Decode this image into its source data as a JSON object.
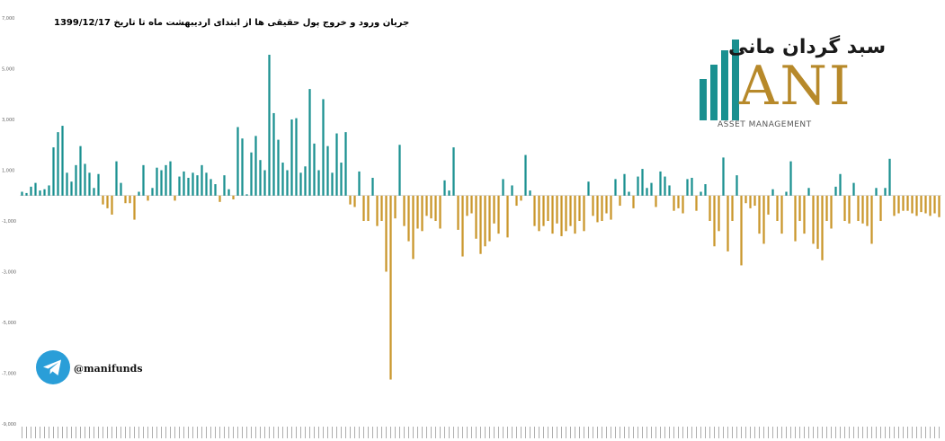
{
  "chart_data": {
    "type": "bar",
    "title": "جریان ورود و خروج پول حقیقی ها از ابتدای اردیبهشت ماه تا تاریخ 1399/12/17",
    "ylim": [
      -9000,
      7000
    ],
    "yticks": [
      "7,000",
      "5,000",
      "3,000",
      "1,000",
      "-1,000",
      "-3,000",
      "-5,000",
      "-7,000",
      "-9,000"
    ],
    "ytick_values": [
      7000,
      5000,
      3000,
      1000,
      -1000,
      -3000,
      -5000,
      -7000,
      -9000
    ],
    "positive_color": "#1a9090",
    "negative_color": "#c9962a",
    "values": [
      150,
      100,
      350,
      500,
      200,
      250,
      400,
      1900,
      2500,
      2750,
      900,
      550,
      1200,
      1950,
      1250,
      900,
      300,
      850,
      -350,
      -500,
      -750,
      1350,
      500,
      -300,
      -300,
      -950,
      150,
      1200,
      -200,
      300,
      1100,
      1000,
      1200,
      1350,
      -200,
      750,
      950,
      700,
      900,
      800,
      1200,
      900,
      650,
      450,
      -250,
      800,
      250,
      -150,
      2700,
      2250,
      50,
      1700,
      2350,
      1400,
      1000,
      5550,
      3250,
      2200,
      1300,
      1000,
      3000,
      3050,
      900,
      1150,
      4200,
      2050,
      1000,
      3800,
      1950,
      900,
      2450,
      1300,
      2500,
      -350,
      -450,
      950,
      -1000,
      -1000,
      700,
      -1200,
      -1000,
      -3000,
      -7250,
      -900,
      2000,
      -1200,
      -1800,
      -2500,
      -1300,
      -1400,
      -800,
      -900,
      -1000,
      -1300,
      600,
      200,
      1900,
      -1350,
      -2400,
      -800,
      -700,
      -1700,
      -2300,
      -2000,
      -1800,
      -1100,
      -1500,
      650,
      -1650,
      400,
      -400,
      -200,
      1600,
      200,
      -1200,
      -1400,
      -1200,
      -1000,
      -1500,
      -1100,
      -1600,
      -1400,
      -1200,
      -1500,
      -1000,
      -1400,
      550,
      -800,
      -1050,
      -1000,
      -700,
      -950,
      650,
      -400,
      850,
      150,
      -500,
      750,
      1050,
      300,
      500,
      -450,
      950,
      750,
      400,
      -600,
      -500,
      -700,
      650,
      700,
      -600,
      150,
      450,
      -1000,
      -2000,
      -1400,
      1500,
      -2200,
      -1000,
      800,
      -2750,
      -300,
      -500,
      -400,
      -1500,
      -1900,
      -750,
      250,
      -1000,
      -1500,
      150,
      1350,
      -1800,
      -1000,
      -1500,
      300,
      -1900,
      -2100,
      -2550,
      -1000,
      -1300,
      350,
      850,
      -1000,
      -1100,
      500,
      -1000,
      -1100,
      -1200,
      -1900,
      300,
      -1000,
      300,
      1450,
      -800,
      -700,
      -600,
      -600,
      -700,
      -800,
      -650,
      -700,
      -800,
      -700,
      -850
    ]
  },
  "logo": {
    "farsi": "سبد گردان مانی",
    "latin": "ANI",
    "subtitle": "ASSET MANAGEMENT"
  },
  "telegram": {
    "handle": "@manifunds",
    "icon": "telegram-icon",
    "color": "#2a9ed8"
  }
}
